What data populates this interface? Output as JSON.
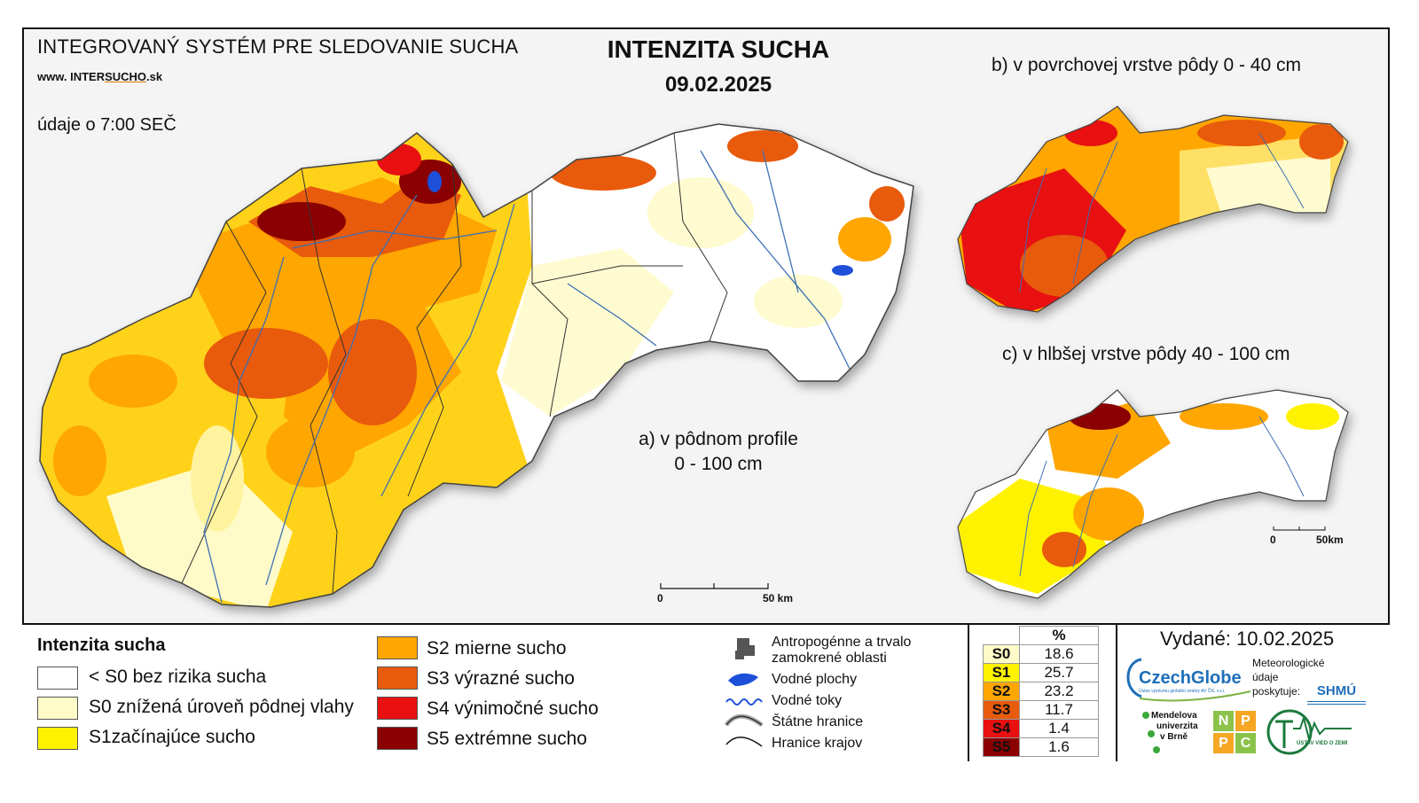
{
  "header": {
    "system_title": "INTEGROVANÝ SYSTÉM PRE SLEDOVANIE SUCHA",
    "website_prefix": "www. INTER",
    "website_highlight": "SUCHO",
    "website_suffix": ".sk",
    "data_time": "údaje o 7:00 SEČ",
    "main_title": "INTENZITA SUCHA",
    "date": "09.02.2025"
  },
  "maps": {
    "a_label_line1": "a) v pôdnom profile",
    "a_label_line2": "0 - 100 cm",
    "b_label": "b) v povrchovej vrstve pôdy 0 - 40 cm",
    "c_label": "c) v hlbšej vrstve pôdy 40 - 100 cm",
    "scale_zero": "0",
    "scale_main": "50 km",
    "scale_small": "50km"
  },
  "legend": {
    "title": "Intenzita sucha",
    "classes": [
      {
        "label": "< S0 bez rizika sucha",
        "color": "#ffffff"
      },
      {
        "label": "S0 znížená úroveň pôdnej vlahy",
        "color": "#fffbc9"
      },
      {
        "label": "S1začínajúce sucho",
        "color": "#fff200"
      },
      {
        "label": "S2 mierne sucho",
        "color": "#ffa600"
      },
      {
        "label": "S3 výrazné sucho",
        "color": "#e85a0c"
      },
      {
        "label": "S4 výnimočné sucho",
        "color": "#e81010"
      },
      {
        "label": "S5 extrémne sucho",
        "color": "#8b0000"
      }
    ],
    "symbols": {
      "anthropogenic_line1": "Antropogénne a trvalo",
      "anthropogenic_line2": "zamokrené oblasti",
      "water_areas": "Vodné plochy",
      "water_streams": "Vodné toky",
      "state_border": "Štátne hranice",
      "region_border": "Hranice krajov"
    }
  },
  "percent_table": {
    "header": "%",
    "rows": [
      {
        "cls": "S0",
        "value": "18.6",
        "color": "#fffbc9"
      },
      {
        "cls": "S1",
        "value": "25.7",
        "color": "#fff200"
      },
      {
        "cls": "S2",
        "value": "23.2",
        "color": "#ffa600"
      },
      {
        "cls": "S3",
        "value": "11.7",
        "color": "#e85a0c"
      },
      {
        "cls": "S4",
        "value": "1.4",
        "color": "#e81010"
      },
      {
        "cls": "S5",
        "value": "1.6",
        "color": "#8b0000"
      }
    ]
  },
  "credits": {
    "issued": "Vydané: 10.02.2025",
    "czechglobe": "CzechGlobe",
    "czechglobe_sub": "Ústav výzkumu globální změny AV ČR, v.v.i.",
    "meteo_line1": "Meteorologické",
    "meteo_line2": "údaje",
    "meteo_line3": "poskytuje:",
    "shmu": "SHMÚ",
    "mendel_line1": "Mendelova",
    "mendel_line2": "univerzita",
    "mendel_line3": "v Brně",
    "npc": [
      "N",
      "P",
      "P",
      "C"
    ],
    "uvz": "ÚSTAV VIED O ZEMI"
  }
}
